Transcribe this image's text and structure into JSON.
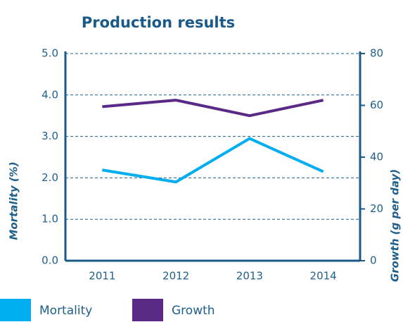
{
  "chart_data": {
    "type": "line",
    "title": "Production results",
    "categories": [
      "2011",
      "2012",
      "2013",
      "2014"
    ],
    "series": [
      {
        "name": "Mortality",
        "color": "#00aeef",
        "values": [
          2.19,
          1.9,
          2.95,
          2.15
        ]
      },
      {
        "name": "Growth",
        "color": "#5b2a86",
        "axis": "y2",
        "values": [
          59.5,
          62,
          56,
          62
        ]
      }
    ],
    "ylabel": "Mortality (%)",
    "y2label": "Growth (g per day)",
    "ylim": [
      0,
      5
    ],
    "yticks": [
      {
        "value": 0,
        "label": "0.0"
      },
      {
        "value": 1,
        "label": "1.0"
      },
      {
        "value": 2,
        "label": "2.0"
      },
      {
        "value": 3,
        "label": "3.0"
      },
      {
        "value": 4,
        "label": "4.0"
      },
      {
        "value": 5,
        "label": "5.0"
      }
    ],
    "y2lim": [
      0,
      80
    ],
    "y2ticks": [
      0,
      20,
      40,
      60,
      80
    ],
    "grid": true,
    "legend": "bottom"
  }
}
